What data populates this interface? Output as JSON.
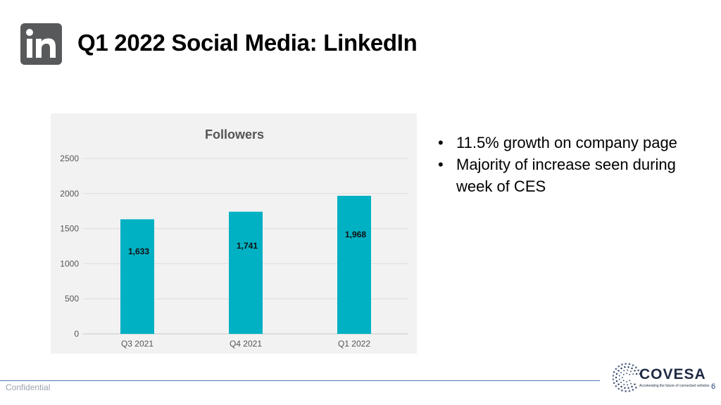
{
  "slide": {
    "title": "Q1 2022 Social Media: LinkedIn",
    "logo_text": "in",
    "footer_left": "Confidential",
    "page_number": "6",
    "brand_name": "COVESA",
    "brand_tagline": "Accelerating the future of connected vehicles"
  },
  "bullets": [
    "11.5% growth on company page",
    "Majority of increase seen during week of CES"
  ],
  "colors": {
    "bar": "#00b0c3",
    "panel": "#f2f2f2",
    "logo_bg": "#58595b",
    "brand": "#1f2a44"
  },
  "chart_data": {
    "type": "bar",
    "title": "Followers",
    "categories": [
      "Q3 2021",
      "Q4 2021",
      "Q1 2022"
    ],
    "values": [
      1633,
      1741,
      1968
    ],
    "data_labels": [
      "1,633",
      "1,741",
      "1,968"
    ],
    "ylim": [
      0,
      2500
    ],
    "yticks": [
      0,
      500,
      1000,
      1500,
      2000,
      2500
    ],
    "grid": true,
    "xlabel": "",
    "ylabel": ""
  }
}
